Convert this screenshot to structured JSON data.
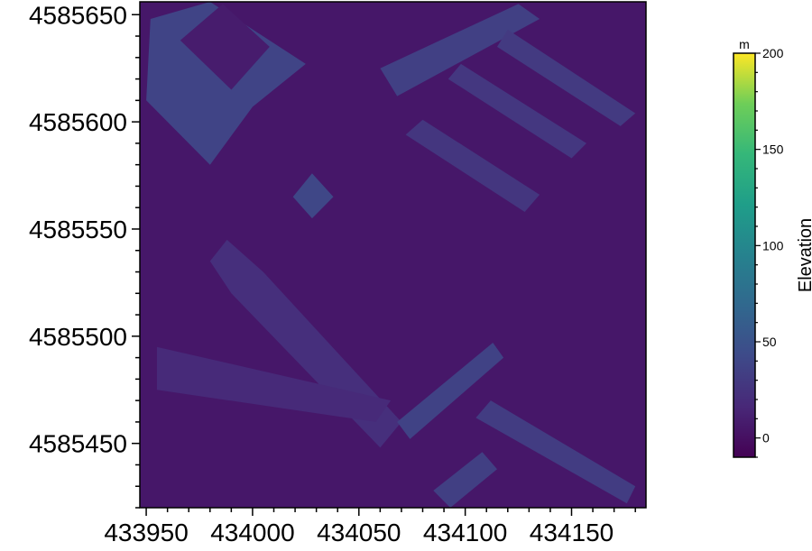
{
  "chart_data": {
    "type": "heatmap",
    "title": "",
    "xlabel": "",
    "ylabel": "",
    "xlim": [
      433947,
      434185
    ],
    "ylim": [
      4585420,
      4585656
    ],
    "x_ticks": [
      433950,
      434000,
      434050,
      434100,
      434150
    ],
    "y_ticks": [
      4585450,
      4585500,
      4585550,
      4585600,
      4585650
    ],
    "colormap": "viridis",
    "background_elevation": 5,
    "colorbar": {
      "label": "Elevation",
      "unit": "m",
      "range": [
        -10,
        200
      ],
      "ticks": [
        0,
        50,
        100,
        150,
        200
      ]
    },
    "features": [
      {
        "kind": "building",
        "corners": [
          [
            433952,
            4585648
          ],
          [
            433980,
            4585656
          ],
          [
            434025,
            4585627
          ],
          [
            434000,
            4585607
          ],
          [
            433980,
            4585580
          ],
          [
            433950,
            4585610
          ]
        ],
        "elevation": 38
      },
      {
        "kind": "courtyard",
        "corners": [
          [
            433966,
            4585638
          ],
          [
            433986,
            4585655
          ],
          [
            434008,
            4585635
          ],
          [
            433990,
            4585615
          ]
        ],
        "elevation": 8
      },
      {
        "kind": "building",
        "corners": [
          [
            434060,
            4585625
          ],
          [
            434125,
            4585655
          ],
          [
            434135,
            4585648
          ],
          [
            434068,
            4585612
          ]
        ],
        "elevation": 35
      },
      {
        "kind": "building",
        "corners": [
          [
            434115,
            4585635
          ],
          [
            434173,
            4585598
          ],
          [
            434180,
            4585604
          ],
          [
            434120,
            4585643
          ]
        ],
        "elevation": 30
      },
      {
        "kind": "building",
        "corners": [
          [
            434092,
            4585620
          ],
          [
            434150,
            4585583
          ],
          [
            434157,
            4585590
          ],
          [
            434098,
            4585627
          ]
        ],
        "elevation": 28
      },
      {
        "kind": "building",
        "corners": [
          [
            434072,
            4585594
          ],
          [
            434128,
            4585558
          ],
          [
            434135,
            4585566
          ],
          [
            434080,
            4585601
          ]
        ],
        "elevation": 27
      },
      {
        "kind": "building",
        "corners": [
          [
            434019,
            4585565
          ],
          [
            434028,
            4585576
          ],
          [
            434038,
            4585565
          ],
          [
            434028,
            4585555
          ]
        ],
        "elevation": 40
      },
      {
        "kind": "building",
        "corners": [
          [
            433988,
            4585545
          ],
          [
            434005,
            4585530
          ],
          [
            434070,
            4585460
          ],
          [
            434060,
            4585448
          ],
          [
            433990,
            4585520
          ],
          [
            433980,
            4585535
          ]
        ],
        "elevation": 22
      },
      {
        "kind": "building",
        "corners": [
          [
            433955,
            4585495
          ],
          [
            434065,
            4585470
          ],
          [
            434058,
            4585460
          ],
          [
            433955,
            4585475
          ]
        ],
        "elevation": 18
      },
      {
        "kind": "building",
        "corners": [
          [
            434068,
            4585460
          ],
          [
            434113,
            4585497
          ],
          [
            434118,
            4585490
          ],
          [
            434074,
            4585452
          ]
        ],
        "elevation": 36
      },
      {
        "kind": "building",
        "corners": [
          [
            434112,
            4585470
          ],
          [
            434180,
            4585430
          ],
          [
            434176,
            4585422
          ],
          [
            434105,
            4585462
          ]
        ],
        "elevation": 32
      },
      {
        "kind": "building",
        "corners": [
          [
            434085,
            4585428
          ],
          [
            434108,
            4585446
          ],
          [
            434115,
            4585438
          ],
          [
            434093,
            4585420
          ]
        ],
        "elevation": 34
      }
    ]
  }
}
